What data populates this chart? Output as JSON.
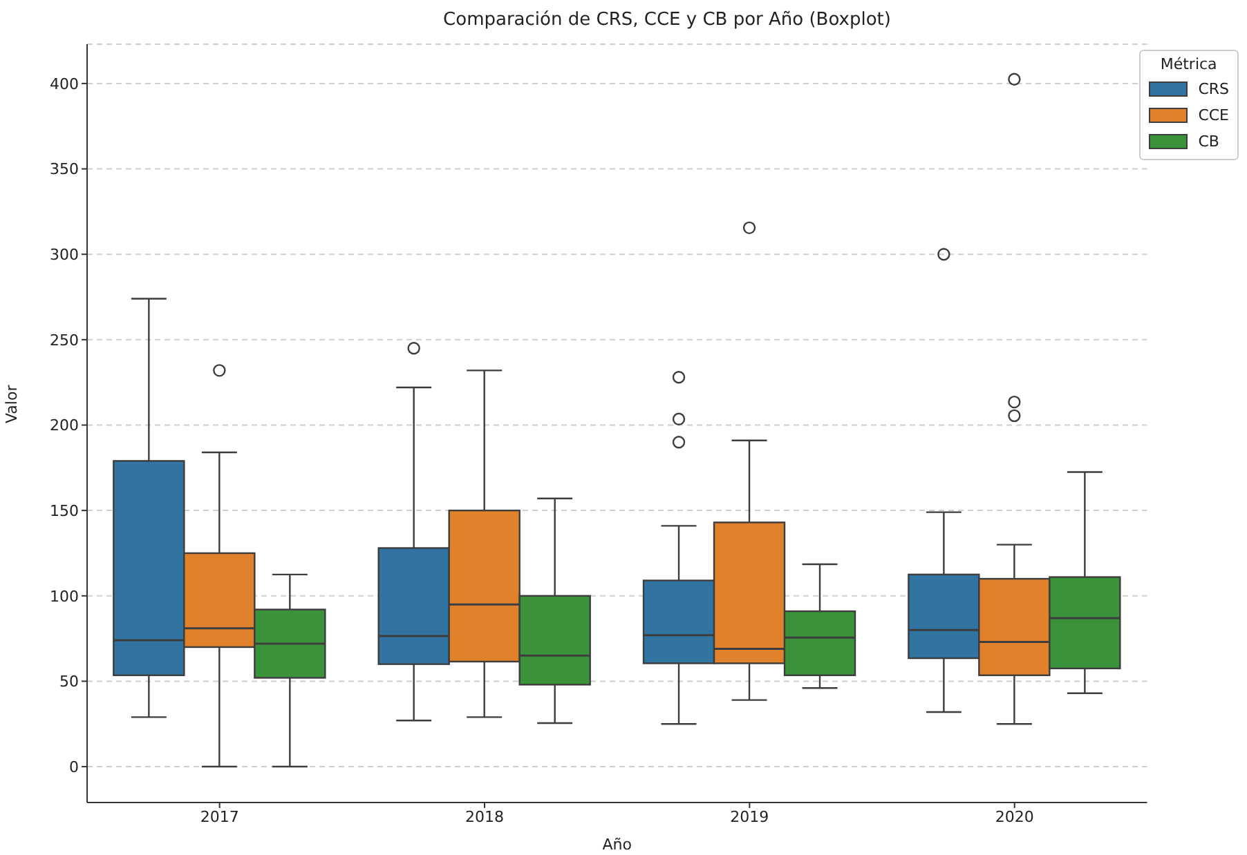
{
  "chart_data": {
    "type": "box",
    "title": "Comparación de CRS, CCE y CB por Año (Boxplot)",
    "xlabel": "Año",
    "ylabel": "Valor",
    "legend_title": "Métrica",
    "categories": [
      "2017",
      "2018",
      "2019",
      "2020"
    ],
    "ylim": [
      -21,
      423
    ],
    "yticks": [
      0,
      50,
      100,
      150,
      200,
      250,
      300,
      350,
      400
    ],
    "grid": "y",
    "legend": "top right",
    "series": [
      {
        "name": "CRS",
        "color": "#3274a1",
        "boxes": [
          {
            "low": 29,
            "q1": 53.5,
            "median": 74,
            "q3": 179,
            "high": 274
          },
          {
            "low": 27,
            "q1": 60,
            "median": 76.5,
            "q3": 128,
            "high": 222,
            "outliers": [
              245
            ]
          },
          {
            "low": 25,
            "q1": 60.5,
            "median": 77,
            "q3": 109,
            "high": 141,
            "outliers": [
              228,
              203.5,
              190
            ]
          },
          {
            "low": 32,
            "q1": 63.5,
            "median": 80,
            "q3": 112.5,
            "high": 149,
            "outliers": [
              300
            ]
          }
        ]
      },
      {
        "name": "CCE",
        "color": "#e1812c",
        "boxes": [
          {
            "low": 0,
            "q1": 70,
            "median": 81,
            "q3": 125,
            "high": 184,
            "outliers": [
              232
            ]
          },
          {
            "low": 29,
            "q1": 61.5,
            "median": 95,
            "q3": 150,
            "high": 232
          },
          {
            "low": 39,
            "q1": 60.5,
            "median": 69,
            "q3": 143,
            "high": 191,
            "outliers": [
              315.5
            ]
          },
          {
            "low": 25,
            "q1": 53.5,
            "median": 73,
            "q3": 110,
            "high": 130,
            "outliers": [
              402.5,
              213.5,
              205.5
            ]
          }
        ]
      },
      {
        "name": "CB",
        "color": "#3a923a",
        "boxes": [
          {
            "low": 0,
            "q1": 52,
            "median": 72,
            "q3": 92,
            "high": 112.5
          },
          {
            "low": 25.5,
            "q1": 48,
            "median": 65,
            "q3": 100,
            "high": 157
          },
          {
            "low": 46,
            "q1": 53.5,
            "median": 75.5,
            "q3": 91,
            "high": 118.5
          },
          {
            "low": 43,
            "q1": 57.5,
            "median": 87,
            "q3": 111,
            "high": 172.5
          }
        ]
      }
    ]
  }
}
